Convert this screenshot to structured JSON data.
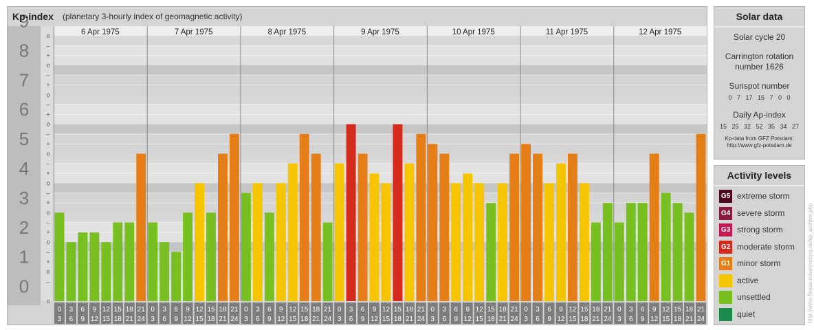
{
  "title": "Kp-index",
  "subtitle": "(planetary 3-hourly index of geomagnetic activity)",
  "chart_data": {
    "type": "bar",
    "title": "Kp-index",
    "subtitle": "(planetary 3-hourly index of geomagnetic activity)",
    "ylim": [
      0,
      9
    ],
    "y_ticks": [
      "0",
      "1",
      "2",
      "3",
      "4",
      "5",
      "6",
      "7",
      "8",
      "9"
    ],
    "minor_ticks": [
      "o",
      "+",
      "–"
    ],
    "days": [
      "6 Apr 1975",
      "7 Apr 1975",
      "8 Apr 1975",
      "9 Apr 1975",
      "10 Apr 1975",
      "11 Apr 1975",
      "12 Apr 1975"
    ],
    "interval_start": [
      "0",
      "3",
      "6",
      "9",
      "12",
      "15",
      "18",
      "21"
    ],
    "interval_end": [
      "3",
      "6",
      "9",
      "12",
      "15",
      "18",
      "21",
      "24"
    ],
    "values": [
      [
        3.0,
        2.0,
        2.33,
        2.33,
        2.0,
        2.67,
        2.67,
        5.0
      ],
      [
        2.67,
        2.0,
        1.67,
        3.0,
        4.0,
        3.0,
        5.0,
        5.67
      ],
      [
        3.67,
        4.0,
        3.0,
        4.0,
        4.67,
        5.67,
        5.0,
        2.67
      ],
      [
        4.67,
        6.0,
        5.0,
        4.33,
        4.0,
        6.0,
        4.67,
        5.67
      ],
      [
        5.33,
        5.0,
        4.0,
        4.33,
        4.0,
        3.33,
        4.0,
        5.0
      ],
      [
        5.33,
        5.0,
        4.0,
        4.67,
        5.0,
        4.0,
        2.67,
        3.33
      ],
      [
        2.67,
        3.33,
        3.33,
        5.0,
        3.67,
        3.33,
        3.0,
        5.67
      ]
    ]
  },
  "colors": {
    "g5": "#4d0a1e",
    "g4": "#8a1a3e",
    "g3": "#c41a52",
    "g2": "#d52b1e",
    "g1": "#e67e17",
    "active": "#f7c500",
    "unsettled": "#78c021",
    "quiet": "#1c8a4a"
  },
  "solar": {
    "heading": "Solar data",
    "cycle": "Solar cycle 20",
    "carrington_1": "Carrington rotation",
    "carrington_2": "number 1626",
    "sunspot_label": "Sunspot number",
    "sunspot_values": "0 7 17 15 7 0 0",
    "ap_label": "Daily Ap-index",
    "ap_values": "15 25 32 52 35 34 27",
    "source_1": "Kp-data from GFZ Potsdam:",
    "source_2": "http://www.gfz-potsdam.de"
  },
  "activity": {
    "heading": "Activity levels",
    "levels": [
      {
        "badge": "G5",
        "label": "extreme storm",
        "color": "#4d0a1e"
      },
      {
        "badge": "G4",
        "label": "severe storm",
        "color": "#8a1a3e"
      },
      {
        "badge": "G3",
        "label": "strong storm",
        "color": "#c41a52"
      },
      {
        "badge": "G2",
        "label": "moderate storm",
        "color": "#d52b1e"
      },
      {
        "badge": "G1",
        "label": "minor storm",
        "color": "#e67e17"
      },
      {
        "badge": "",
        "label": "active",
        "color": "#f7c500"
      },
      {
        "badge": "",
        "label": "unsettled",
        "color": "#78c021"
      },
      {
        "badge": "",
        "label": "quiet",
        "color": "#1c8a4a"
      }
    ]
  },
  "credit": "http://www.flesse-edwinrudorp.de/kp_archive.php"
}
